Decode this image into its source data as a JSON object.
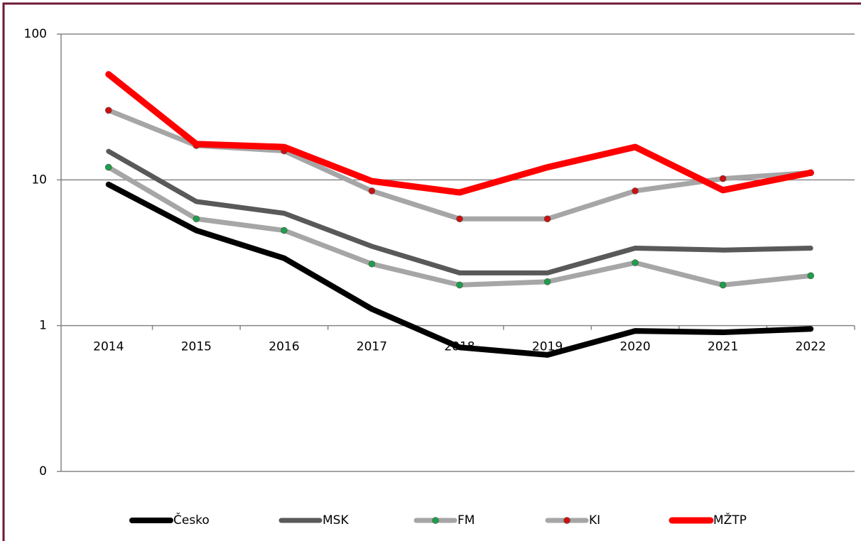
{
  "chart_data": {
    "type": "line",
    "categories": [
      "2014",
      "2015",
      "2016",
      "2017",
      "2018",
      "2019",
      "2020",
      "2021",
      "2022"
    ],
    "series": [
      {
        "name": "Česko",
        "color": "#000000",
        "values": [
          9.3,
          4.5,
          2.9,
          1.3,
          0.71,
          0.63,
          0.92,
          0.9,
          0.95
        ]
      },
      {
        "name": "MSK",
        "color": "#595959",
        "values": [
          15.7,
          7.1,
          5.9,
          3.5,
          2.3,
          2.3,
          3.4,
          3.3,
          3.4
        ]
      },
      {
        "name": "FM",
        "color": "#a6a6a6",
        "marker": "#1e9e4a",
        "values": [
          12.2,
          5.4,
          4.5,
          2.65,
          1.9,
          2.0,
          2.7,
          1.9,
          2.2
        ]
      },
      {
        "name": "KI",
        "color": "#a6a6a6",
        "marker": "#cc1010",
        "values": [
          30,
          17.2,
          15.8,
          8.4,
          5.4,
          5.4,
          8.4,
          10.2,
          11.2
        ]
      },
      {
        "name": "MŽTP",
        "color": "#ff0000",
        "values": [
          53,
          17.6,
          16.8,
          9.8,
          8.2,
          12.2,
          16.8,
          8.5,
          11.2
        ]
      }
    ],
    "ylim": [
      0.1,
      100
    ],
    "yticks": [
      {
        "value": 0.1,
        "label": "0"
      },
      1,
      10,
      100
    ],
    "log_y": true,
    "grid": true,
    "legend": "bottom"
  }
}
